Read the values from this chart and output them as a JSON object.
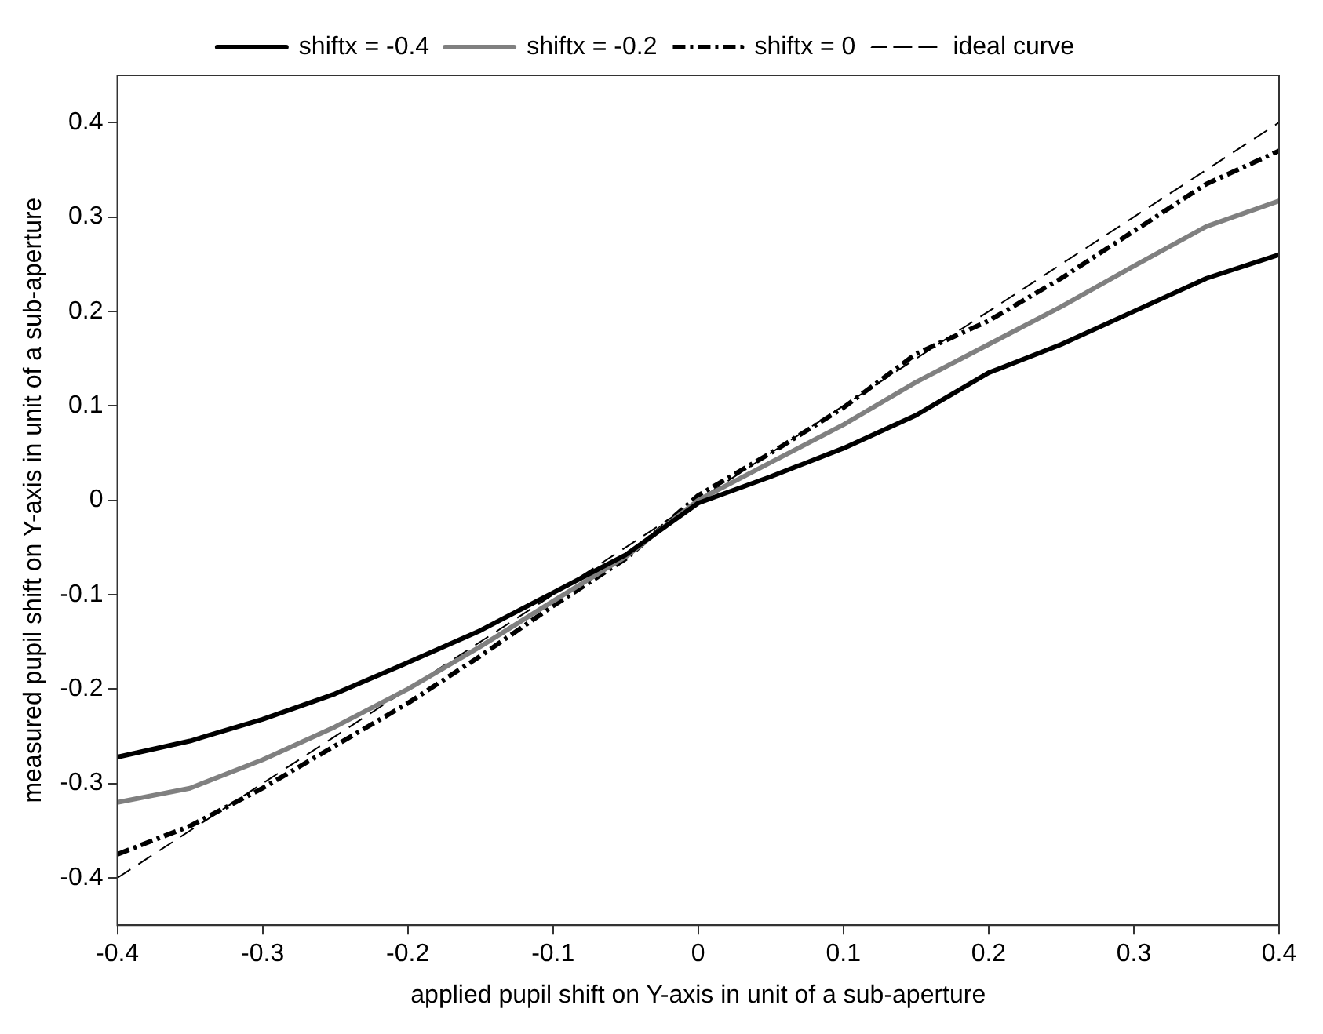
{
  "chart_data": {
    "type": "line",
    "xlabel": "applied pupil shift on Y-axis in unit of a sub-aperture",
    "ylabel": "measured pupil shift on Y-axis in unit of a sub-aperture",
    "x": [
      -0.4,
      -0.35,
      -0.3,
      -0.25,
      -0.2,
      -0.15,
      -0.1,
      -0.05,
      0,
      0.05,
      0.1,
      0.15,
      0.2,
      0.25,
      0.3,
      0.35,
      0.4
    ],
    "series": [
      {
        "name": "shiftx = -0.4",
        "color": "#000000",
        "line_style": "solid",
        "values": [
          -0.272,
          -0.255,
          -0.232,
          -0.205,
          -0.172,
          -0.138,
          -0.098,
          -0.058,
          -0.003,
          0.025,
          0.055,
          0.09,
          0.135,
          0.165,
          0.2,
          0.235,
          0.26
        ]
      },
      {
        "name": "shiftx = -0.2",
        "color": "#808080",
        "line_style": "solid",
        "values": [
          -0.32,
          -0.305,
          -0.275,
          -0.24,
          -0.2,
          -0.155,
          -0.107,
          -0.06,
          0,
          0.04,
          0.08,
          0.125,
          0.165,
          0.205,
          0.248,
          0.29,
          0.317
        ]
      },
      {
        "name": "shiftx = 0",
        "color": "#000000",
        "line_style": "dashdot",
        "values": [
          -0.375,
          -0.345,
          -0.305,
          -0.26,
          -0.215,
          -0.165,
          -0.112,
          -0.062,
          0.005,
          0.05,
          0.098,
          0.155,
          0.19,
          0.235,
          0.285,
          0.335,
          0.37
        ]
      },
      {
        "name": "ideal curve",
        "color": "#000000",
        "line_style": "dashed",
        "x": [
          -0.4,
          0.4
        ],
        "values": [
          -0.4,
          0.4
        ]
      }
    ],
    "xlim": [
      -0.4,
      0.4
    ],
    "xticks": [
      -0.4,
      -0.3,
      -0.2,
      -0.1,
      0,
      0.1,
      0.2,
      0.3,
      0.4
    ],
    "ylim": [
      -0.45,
      0.45
    ],
    "yticks": [
      -0.4,
      -0.3,
      -0.2,
      -0.1,
      0,
      0.1,
      0.2,
      0.3,
      0.4
    ],
    "grid": false,
    "legend": "top",
    "marker": "none"
  }
}
